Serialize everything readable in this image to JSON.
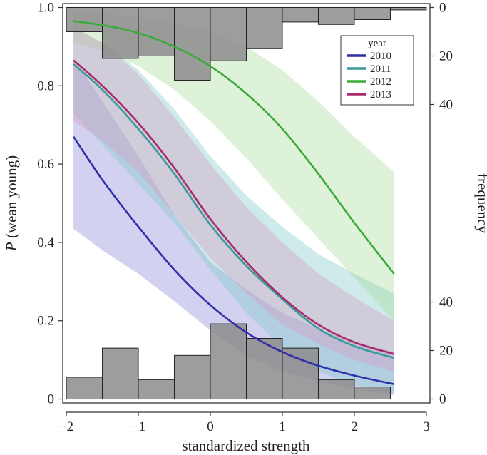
{
  "chart_data": {
    "type": "line",
    "title": "",
    "xlabel": "standardized strength",
    "ylabel_italic": "P",
    "ylabel_rest": " (wean young)",
    "y2label": "frequency",
    "xlim": [
      -2.05,
      3.05
    ],
    "ylim": [
      -0.01,
      1.01
    ],
    "xticks": [
      -2,
      -1,
      0,
      1,
      2,
      3
    ],
    "xtick_labels": [
      "−2",
      "−1",
      "0",
      "1",
      "2",
      "3"
    ],
    "yticks": [
      0,
      0.2,
      0.4,
      0.6,
      0.8,
      1.0
    ],
    "ytick_labels": [
      "0",
      "0.2",
      "0.4",
      "0.6",
      "0.8",
      "1.0"
    ],
    "freq_axis_top": {
      "ticks": [
        0,
        20,
        40
      ],
      "labels": [
        "0",
        "20",
        "40"
      ]
    },
    "freq_axis_bottom": {
      "ticks": [
        0,
        20,
        40
      ],
      "labels": [
        "0",
        "20",
        "40"
      ]
    },
    "legend": {
      "title": "year",
      "position": "top-right"
    },
    "series": [
      {
        "name": "2010",
        "color": "#2f2fa8",
        "band_color": "#8a8ad8",
        "x": [
          -1.9,
          -1.5,
          -1.0,
          -0.5,
          0.0,
          0.5,
          1.0,
          1.5,
          2.0,
          2.55
        ],
        "y": [
          0.67,
          0.56,
          0.44,
          0.33,
          0.24,
          0.17,
          0.12,
          0.085,
          0.06,
          0.038
        ],
        "lower": [
          0.435,
          0.38,
          0.32,
          0.25,
          0.175,
          0.11,
          0.07,
          0.045,
          0.025,
          0.01
        ],
        "upper": [
          0.87,
          0.76,
          0.62,
          0.47,
          0.35,
          0.28,
          0.22,
          0.18,
          0.145,
          0.12
        ]
      },
      {
        "name": "2011",
        "color": "#3a9a9a",
        "band_color": "#7fc7c7",
        "x": [
          -1.9,
          -1.5,
          -1.0,
          -0.5,
          0.0,
          0.5,
          1.0,
          1.5,
          2.0,
          2.55
        ],
        "y": [
          0.855,
          0.79,
          0.69,
          0.575,
          0.445,
          0.34,
          0.255,
          0.18,
          0.135,
          0.105
        ],
        "lower": [
          0.73,
          0.65,
          0.55,
          0.45,
          0.33,
          0.22,
          0.13,
          0.07,
          0.035,
          0.015
        ],
        "upper": [
          0.95,
          0.91,
          0.84,
          0.74,
          0.62,
          0.52,
          0.44,
          0.37,
          0.32,
          0.27
        ]
      },
      {
        "name": "2012",
        "color": "#3aaa3a",
        "band_color": "#a6dc9a",
        "x": [
          -1.9,
          -1.5,
          -1.0,
          -0.5,
          0.0,
          0.5,
          1.0,
          1.5,
          2.0,
          2.55
        ],
        "y": [
          0.965,
          0.955,
          0.935,
          0.9,
          0.85,
          0.78,
          0.69,
          0.575,
          0.45,
          0.32
        ],
        "lower": [
          0.91,
          0.89,
          0.85,
          0.79,
          0.71,
          0.615,
          0.51,
          0.41,
          0.31,
          0.2
        ],
        "upper": [
          0.99,
          0.985,
          0.975,
          0.96,
          0.94,
          0.9,
          0.84,
          0.76,
          0.67,
          0.58
        ]
      },
      {
        "name": "2013",
        "color": "#a82a6a",
        "band_color": "#d89ac0",
        "x": [
          -1.9,
          -1.5,
          -1.0,
          -0.5,
          0.0,
          0.5,
          1.0,
          1.5,
          2.0,
          2.55
        ],
        "y": [
          0.865,
          0.8,
          0.705,
          0.59,
          0.46,
          0.35,
          0.26,
          0.19,
          0.145,
          0.115
        ],
        "lower": [
          0.71,
          0.66,
          0.58,
          0.47,
          0.36,
          0.27,
          0.19,
          0.14,
          0.1,
          0.07
        ],
        "upper": [
          0.95,
          0.91,
          0.83,
          0.72,
          0.6,
          0.49,
          0.4,
          0.32,
          0.26,
          0.2
        ]
      }
    ],
    "histogram_bottom": {
      "bin_edges": [
        -2.0,
        -1.5,
        -1.0,
        -0.5,
        0.0,
        0.5,
        1.0,
        1.5,
        2.0,
        2.5
      ],
      "counts": [
        9,
        21,
        8,
        18,
        31,
        25,
        21,
        8,
        5
      ]
    },
    "histogram_top": {
      "bin_edges": [
        -2.0,
        -1.5,
        -1.0,
        -0.5,
        0.0,
        0.5,
        1.0,
        1.5,
        2.0,
        2.5,
        3.0
      ],
      "counts": [
        10,
        21,
        20,
        30,
        22,
        17,
        6,
        7,
        5,
        1
      ]
    }
  }
}
